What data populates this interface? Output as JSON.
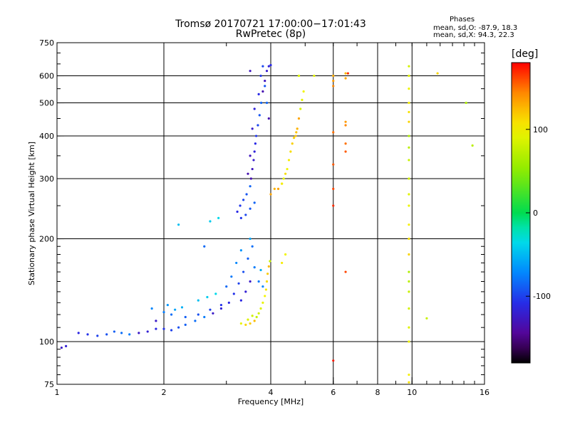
{
  "title": {
    "line1": "Tromsø 20170721 17:00:00−17:01:43",
    "line2": "RwPretec (8p)"
  },
  "phases": {
    "heading": "Phases",
    "o_label": "mean, sd,O:",
    "o_values": "-87.9, 18.3",
    "x_label": "mean, sd,X:",
    "x_values": "94.3, 22.3"
  },
  "colorbar": {
    "unit": "[deg]",
    "ticks": [
      100,
      0,
      -100
    ],
    "range": [
      -180,
      180
    ]
  },
  "chart_data": {
    "type": "scatter",
    "title": "Tromsø 20170721 17:00:00−17:01:43 RwPretec (8p)",
    "xlabel": "Frequency [MHz]",
    "ylabel": "Stationary phase Virtual Height [km]",
    "xscale": "log",
    "yscale": "log",
    "xlim": [
      1,
      16
    ],
    "ylim": [
      75,
      750
    ],
    "x_ticks": [
      1,
      2,
      4,
      6,
      8,
      10,
      16
    ],
    "y_ticks": [
      75,
      100,
      200,
      300,
      400,
      500,
      600,
      750
    ],
    "grid_x": [
      2,
      4,
      6,
      8,
      10
    ],
    "grid_y": [
      100,
      200,
      300,
      400,
      500,
      600
    ],
    "color_by": "phase [deg]",
    "series": [
      {
        "name": "O-trace low",
        "phase": -100,
        "points": [
          [
            1.03,
            96
          ],
          [
            1.06,
            97
          ],
          [
            1.15,
            106
          ],
          [
            1.22,
            105
          ],
          [
            1.3,
            104
          ],
          [
            1.38,
            105
          ],
          [
            1.45,
            107
          ],
          [
            1.52,
            106
          ],
          [
            1.6,
            105
          ],
          [
            1.7,
            106
          ],
          [
            1.8,
            107
          ],
          [
            1.9,
            109
          ],
          [
            2.0,
            109
          ],
          [
            2.1,
            108
          ],
          [
            2.2,
            110
          ],
          [
            2.3,
            112
          ],
          [
            2.45,
            115
          ],
          [
            2.6,
            118
          ],
          [
            2.75,
            121
          ],
          [
            2.9,
            125
          ],
          [
            3.05,
            130
          ],
          [
            3.15,
            138
          ],
          [
            3.25,
            148
          ],
          [
            3.35,
            160
          ],
          [
            3.45,
            175
          ],
          [
            3.55,
            190
          ],
          [
            3.6,
            165
          ],
          [
            3.5,
            150
          ],
          [
            3.4,
            140
          ],
          [
            3.3,
            132
          ],
          [
            2.9,
            128
          ],
          [
            2.7,
            124
          ],
          [
            2.5,
            120
          ],
          [
            2.3,
            118
          ],
          [
            2.1,
            120
          ],
          [
            2.0,
            122
          ],
          [
            1.9,
            115
          ]
        ]
      },
      {
        "name": "O-trace scattered",
        "phase": -60,
        "points": [
          [
            1.85,
            125
          ],
          [
            2.05,
            128
          ],
          [
            2.15,
            124
          ],
          [
            2.25,
            126
          ],
          [
            2.5,
            132
          ],
          [
            2.65,
            135
          ],
          [
            2.8,
            138
          ],
          [
            3.0,
            145
          ],
          [
            3.1,
            155
          ],
          [
            3.2,
            170
          ],
          [
            3.3,
            185
          ],
          [
            3.5,
            200
          ],
          [
            3.75,
            162
          ],
          [
            2.2,
            220
          ],
          [
            2.7,
            225
          ],
          [
            2.85,
            230
          ],
          [
            2.6,
            190
          ],
          [
            3.7,
            150
          ],
          [
            3.8,
            145
          ]
        ]
      },
      {
        "name": "O-trace upper",
        "phase": -110,
        "points": [
          [
            3.22,
            240
          ],
          [
            3.28,
            250
          ],
          [
            3.35,
            260
          ],
          [
            3.42,
            270
          ],
          [
            3.5,
            285
          ],
          [
            3.52,
            300
          ],
          [
            3.55,
            320
          ],
          [
            3.58,
            340
          ],
          [
            3.6,
            360
          ],
          [
            3.62,
            380
          ],
          [
            3.64,
            400
          ],
          [
            3.68,
            430
          ],
          [
            3.72,
            460
          ],
          [
            3.76,
            500
          ],
          [
            3.8,
            540
          ],
          [
            3.85,
            580
          ],
          [
            3.9,
            620
          ],
          [
            3.95,
            640
          ],
          [
            4.0,
            645
          ],
          [
            3.3,
            230
          ],
          [
            3.4,
            235
          ],
          [
            3.5,
            245
          ],
          [
            3.6,
            255
          ],
          [
            3.45,
            310
          ],
          [
            3.5,
            350
          ],
          [
            3.55,
            420
          ],
          [
            3.6,
            480
          ],
          [
            3.7,
            530
          ],
          [
            3.75,
            600
          ],
          [
            3.8,
            640
          ],
          [
            3.85,
            560
          ],
          [
            3.9,
            500
          ],
          [
            3.95,
            450
          ],
          [
            3.5,
            620
          ]
        ]
      },
      {
        "name": "X-trace low",
        "phase": 100,
        "points": [
          [
            3.4,
            112
          ],
          [
            3.5,
            113
          ],
          [
            3.6,
            115
          ],
          [
            3.65,
            118
          ],
          [
            3.7,
            121
          ],
          [
            3.75,
            125
          ],
          [
            3.8,
            130
          ],
          [
            3.85,
            136
          ],
          [
            3.88,
            142
          ],
          [
            3.9,
            150
          ],
          [
            3.92,
            158
          ],
          [
            3.95,
            166
          ],
          [
            3.98,
            172
          ],
          [
            3.55,
            119
          ],
          [
            3.45,
            116
          ],
          [
            3.3,
            113
          ]
        ]
      },
      {
        "name": "X-trace upper",
        "phase": 110,
        "points": [
          [
            4.2,
            280
          ],
          [
            4.3,
            290
          ],
          [
            4.35,
            300
          ],
          [
            4.45,
            320
          ],
          [
            4.5,
            340
          ],
          [
            4.55,
            360
          ],
          [
            4.6,
            380
          ],
          [
            4.7,
            400
          ],
          [
            4.75,
            420
          ],
          [
            4.8,
            450
          ],
          [
            4.85,
            480
          ],
          [
            4.9,
            510
          ],
          [
            4.95,
            540
          ],
          [
            4.3,
            290
          ],
          [
            4.4,
            310
          ],
          [
            4.65,
            395
          ],
          [
            4.72,
            410
          ],
          [
            4.1,
            280
          ],
          [
            4.0,
            270
          ],
          [
            4.8,
            600
          ],
          [
            5.3,
            600
          ],
          [
            4.4,
            180
          ],
          [
            4.3,
            170
          ]
        ]
      },
      {
        "name": "Band 6 MHz",
        "phase": 150,
        "points": [
          [
            6.0,
            600
          ],
          [
            6.0,
            580
          ],
          [
            6.0,
            560
          ],
          [
            6.0,
            410
          ],
          [
            6.0,
            330
          ],
          [
            6.0,
            280
          ],
          [
            6.0,
            250
          ],
          [
            6.0,
            88
          ],
          [
            6.5,
            610
          ],
          [
            6.5,
            590
          ],
          [
            6.5,
            440
          ],
          [
            6.5,
            430
          ],
          [
            6.5,
            380
          ],
          [
            6.5,
            360
          ],
          [
            6.5,
            160
          ],
          [
            6.6,
            610
          ]
        ]
      },
      {
        "name": "Band 10 MHz",
        "phase": 90,
        "points": [
          [
            9.8,
            640
          ],
          [
            9.8,
            600
          ],
          [
            9.8,
            550
          ],
          [
            9.8,
            500
          ],
          [
            9.8,
            470
          ],
          [
            9.8,
            440
          ],
          [
            9.8,
            400
          ],
          [
            9.8,
            370
          ],
          [
            9.8,
            340
          ],
          [
            9.8,
            300
          ],
          [
            9.8,
            270
          ],
          [
            9.8,
            250
          ],
          [
            9.8,
            220
          ],
          [
            9.8,
            200
          ],
          [
            9.8,
            180
          ],
          [
            9.8,
            160
          ],
          [
            9.8,
            150
          ],
          [
            9.8,
            140
          ],
          [
            9.8,
            125
          ],
          [
            9.8,
            110
          ],
          [
            9.8,
            100
          ],
          [
            9.8,
            80
          ],
          [
            9.8,
            76
          ],
          [
            11.8,
            610
          ],
          [
            14.2,
            500
          ],
          [
            14.8,
            375
          ],
          [
            11.0,
            117
          ]
        ]
      }
    ]
  }
}
